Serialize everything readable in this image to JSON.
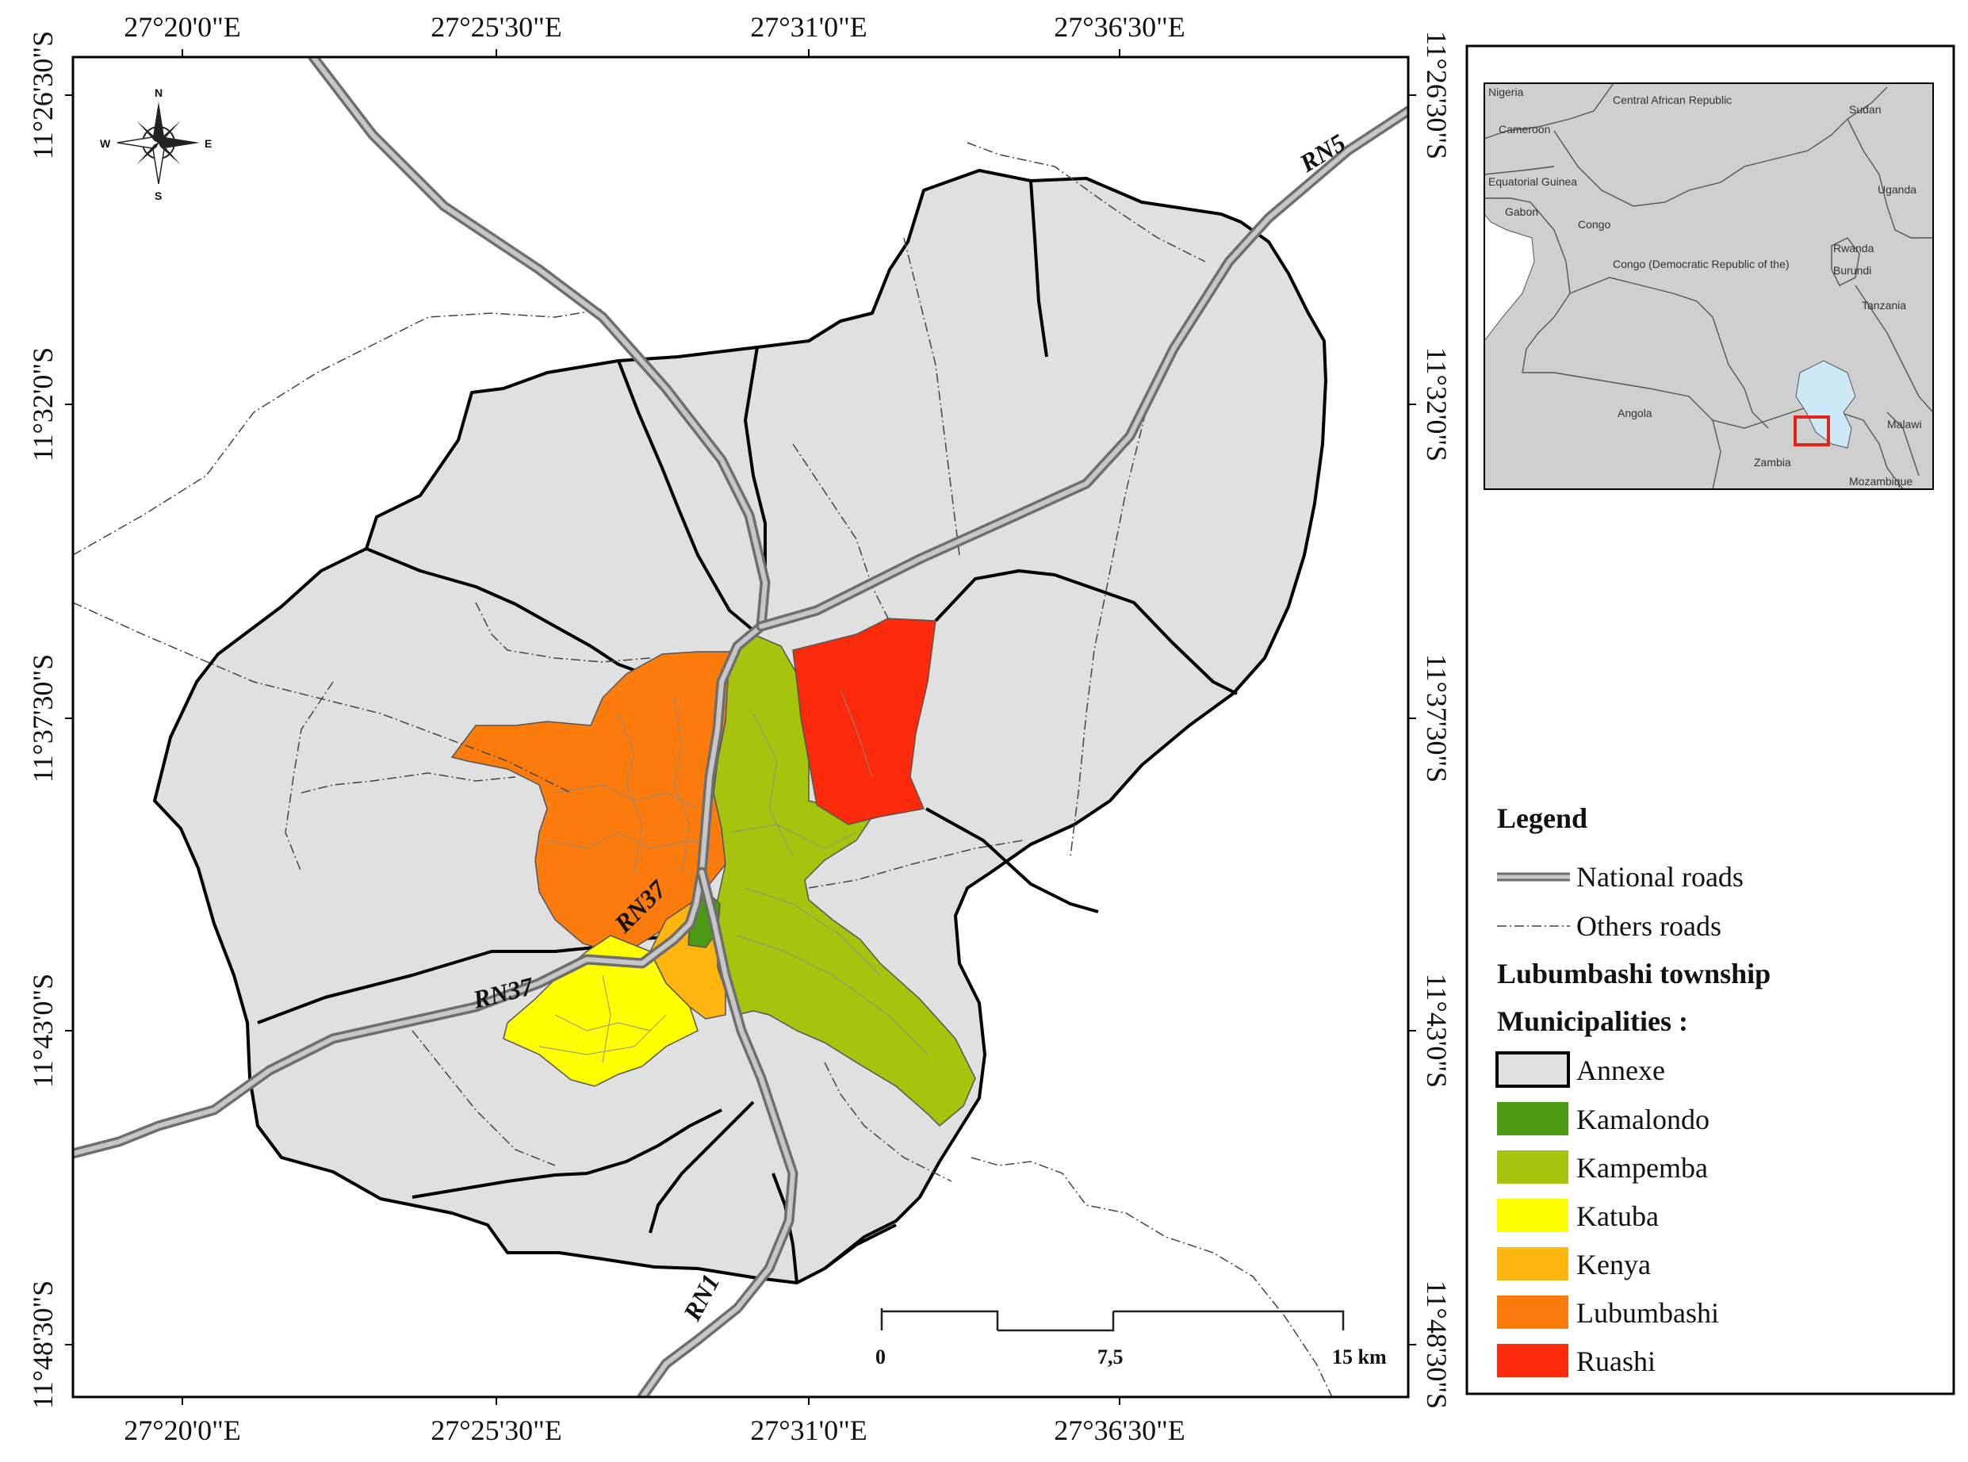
{
  "map": {
    "top_axis": [
      "27°20'0\"E",
      "27°25'30\"E",
      "27°31'0\"E",
      "27°36'30\"E"
    ],
    "bottom_axis": [
      "27°20'0\"E",
      "27°25'30\"E",
      "27°31'0\"E",
      "27°36'30\"E"
    ],
    "left_axis": [
      "11°26'30\"S",
      "11°32'0\"S",
      "11°37'30\"S",
      "11°43'0\"S",
      "11°48'30\"S"
    ],
    "right_axis": [
      "11°26'30\"S",
      "11°32'0\"S",
      "11°37'30\"S",
      "11°43'0\"S",
      "11°48'30\"S"
    ],
    "road_labels": {
      "rn5": "RN5",
      "rn37_center": "RN37",
      "rn37_west": "RN37",
      "rn1": "RN1"
    },
    "compass": {
      "n": "N",
      "s": "S",
      "e": "E",
      "w": "W"
    },
    "scale": {
      "labels": [
        "0",
        "7,5",
        "15 km"
      ]
    }
  },
  "inset": {
    "countries": [
      "Nigeria",
      "Central African Republic",
      "Sudan",
      "Cameroon",
      "Equatorial Guinea",
      "Gabon",
      "Congo",
      "Uganda",
      "Rwanda",
      "Burundi",
      "Congo (Democratic Republic of the)",
      "Tanzania",
      "Angola",
      "Zambia",
      "Malawi",
      "Mozambique"
    ],
    "colors": {
      "land": "#cfcfcf",
      "lake": "#cce9f7",
      "highlight": "#e0261b"
    }
  },
  "legend": {
    "title": "Legend",
    "national_roads": "National roads",
    "other_roads": "Others roads",
    "township": "Lubumbashi township",
    "municipalities_title": "Municipalities :",
    "items": [
      {
        "label": "Annexe",
        "color": "#e0e0e0"
      },
      {
        "label": "Kamalondo",
        "color": "#4c9a12"
      },
      {
        "label": "Kampemba",
        "color": "#a6c40e"
      },
      {
        "label": "Katuba",
        "color": "#ffff00"
      },
      {
        "label": "Kenya",
        "color": "#ffb50f"
      },
      {
        "label": "Lubumbashi",
        "color": "#fb7b0c"
      },
      {
        "label": "Ruashi",
        "color": "#fb2a0a"
      }
    ]
  }
}
